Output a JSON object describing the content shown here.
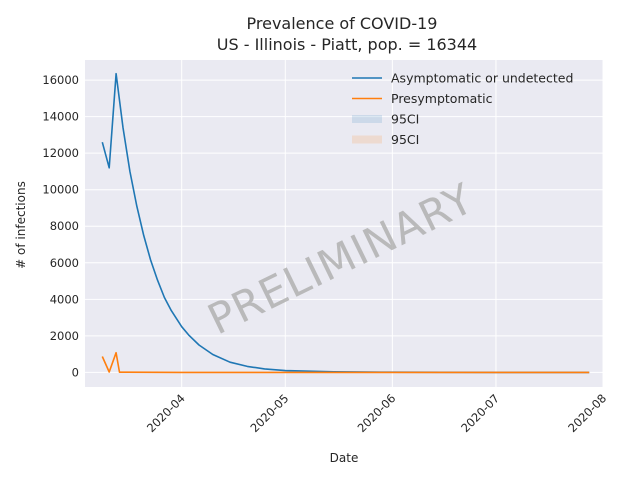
{
  "chart_data": {
    "type": "line",
    "title": "Prevalence of COVID-19",
    "subtitle": "US - Illinois - Piatt, pop. = 16344",
    "xlabel": "Date",
    "ylabel": "# of infections",
    "ylim": [
      -800,
      17100
    ],
    "xlim": [
      "2020-03-04",
      "2020-08-01"
    ],
    "grid": true,
    "legend_position": "top-right",
    "watermark": "PRELIMINARY",
    "x_ticks": [
      "2020-04",
      "2020-05",
      "2020-06",
      "2020-07",
      "2020-08"
    ],
    "y_ticks": [
      0,
      2000,
      4000,
      6000,
      8000,
      10000,
      12000,
      14000,
      16000
    ],
    "series": [
      {
        "name": "Asymptomatic or undetected",
        "color": "#1f77b4",
        "x": [
          "2020-03-09",
          "2020-03-11",
          "2020-03-13",
          "2020-03-15",
          "2020-03-17",
          "2020-03-19",
          "2020-03-21",
          "2020-03-23",
          "2020-03-25",
          "2020-03-27",
          "2020-03-29",
          "2020-04-01",
          "2020-04-03",
          "2020-04-06",
          "2020-04-10",
          "2020-04-15",
          "2020-04-20",
          "2020-04-25",
          "2020-05-01",
          "2020-05-15",
          "2020-06-01",
          "2020-07-01",
          "2020-07-28"
        ],
        "y": [
          12600,
          11200,
          16350,
          13400,
          11000,
          9100,
          7500,
          6150,
          5050,
          4100,
          3380,
          2500,
          2050,
          1500,
          980,
          560,
          330,
          190,
          100,
          30,
          10,
          0,
          0
        ]
      },
      {
        "name": "Presymptomatic",
        "color": "#ff7f0e",
        "x": [
          "2020-03-09",
          "2020-03-11",
          "2020-03-13",
          "2020-03-14",
          "2020-04-01",
          "2020-05-01",
          "2020-06-01",
          "2020-07-01",
          "2020-07-28"
        ],
        "y": [
          870,
          20,
          1080,
          10,
          0,
          0,
          0,
          0,
          0
        ]
      }
    ],
    "ci_legend": [
      {
        "label": "95CI",
        "color": "#1f77b4"
      },
      {
        "label": "95CI",
        "color": "#ff7f0e"
      }
    ]
  }
}
